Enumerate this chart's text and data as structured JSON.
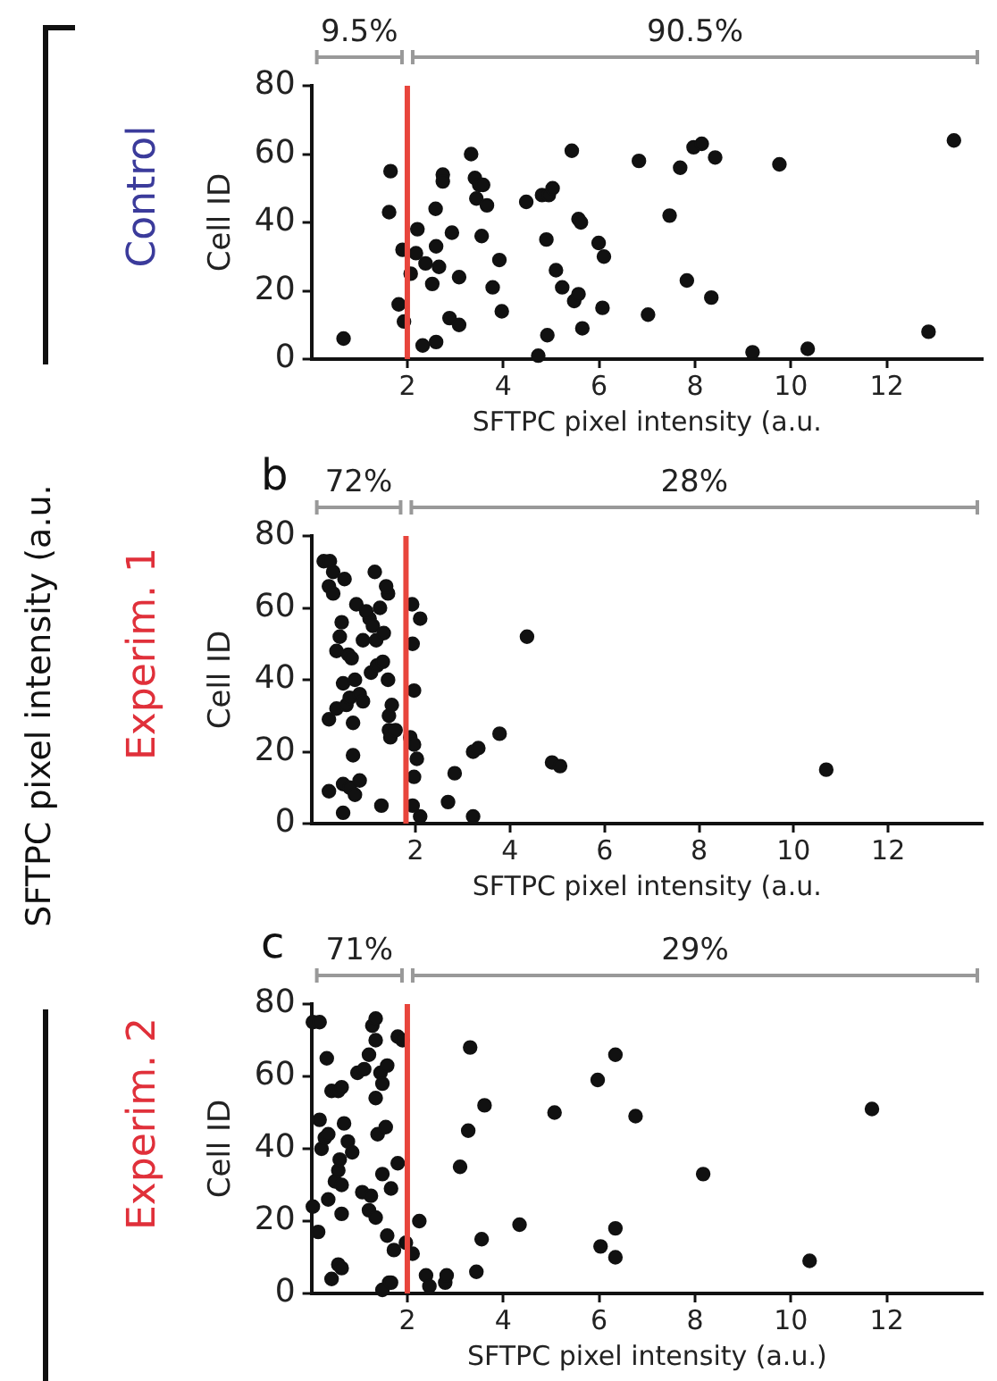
{
  "chart_data": [
    {
      "type": "scatter",
      "title": "Control",
      "xlabel": "SFTPC pixel intensity (a.u.",
      "ylabel": "Cell ID",
      "annotations": [
        "9.5%",
        "90.5%",
        "SFTPC pixel intensity (a.u."
      ],
      "color": "#111111",
      "marker": "circle",
      "grid": false,
      "legend": false,
      "xlim": [
        0,
        14
      ],
      "xticks": [
        2,
        4,
        6,
        8,
        10,
        12
      ],
      "ylim": [
        0,
        80
      ],
      "yticks": [
        0,
        20,
        40,
        60,
        80
      ],
      "ref_lines": [
        {
          "axis": "x",
          "value": 2,
          "color": "#e8453c"
        }
      ],
      "x": [
        0.67,
        1.65,
        1.62,
        1.82,
        1.93,
        1.9,
        2.07,
        2.18,
        2.21,
        2.38,
        2.32,
        2.52,
        2.6,
        2.6,
        2.59,
        2.66,
        2.74,
        2.74,
        2.93,
        2.88,
        3.08,
        3.08,
        3.33,
        3.41,
        3.5,
        3.58,
        3.44,
        3.66,
        3.55,
        3.78,
        3.92,
        3.97,
        4.48,
        4.73,
        4.81,
        4.9,
        4.92,
        4.95,
        5.03,
        5.1,
        5.23,
        5.43,
        5.48,
        5.57,
        5.57,
        5.62,
        5.65,
        5.99,
        6.1,
        6.07,
        6.83,
        7.02,
        7.47,
        7.69,
        7.83,
        7.97,
        8.14,
        8.34,
        8.42,
        9.2,
        9.76,
        10.35,
        12.87,
        13.4
      ],
      "values": [
        6,
        55,
        43,
        16,
        11,
        32,
        25,
        31,
        38,
        28,
        4,
        22,
        5,
        33,
        44,
        27,
        54,
        52,
        37,
        12,
        10,
        24,
        60,
        53,
        51,
        51,
        47,
        45,
        36,
        21,
        29,
        14,
        46,
        1,
        48,
        35,
        7,
        48,
        50,
        26,
        21,
        61,
        17,
        19,
        41,
        40,
        9,
        34,
        30,
        15,
        58,
        13,
        42,
        56,
        23,
        62,
        63,
        18,
        59,
        2,
        57,
        3,
        8,
        64
      ]
    },
    {
      "type": "scatter",
      "title": "Experim. 1",
      "xlabel": "SFTPC pixel intensity (a.u.",
      "ylabel": "Cell ID",
      "annotations": [
        "72%",
        "28%",
        "b"
      ],
      "color": "#111111",
      "marker": "circle",
      "grid": false,
      "legend": false,
      "xlim": [
        -0.2,
        14
      ],
      "xticks": [
        2,
        4,
        6,
        8,
        10,
        12
      ],
      "ylim": [
        0,
        80
      ],
      "yticks": [
        0,
        20,
        40,
        60,
        80
      ],
      "ref_lines": [
        {
          "axis": "x",
          "value": 1.8,
          "color": "#e8453c"
        }
      ],
      "x": [
        0.06,
        0.19,
        0.26,
        0.17,
        0.26,
        0.5,
        0.44,
        0.17,
        0.4,
        0.33,
        0.58,
        0.65,
        0.47,
        0.72,
        0.33,
        0.54,
        0.61,
        0.68,
        0.82,
        0.89,
        0.68,
        0.17,
        0.47,
        0.61,
        0.82,
        0.72,
        0.47,
        0.75,
        1.03,
        1.14,
        0.96,
        1.1,
        0.89,
        1.17,
        1.06,
        1.19,
        1.31,
        1.33,
        1.42,
        1.38,
        1.25,
        1.42,
        1.44,
        1.5,
        1.44,
        1.47,
        1.58,
        1.28,
        1.93,
        2.1,
        1.94,
        1.97,
        1.89,
        1.97,
        2.03,
        1.97,
        1.94,
        2.1,
        2.69,
        2.83,
        3.22,
        3.33,
        3.78,
        3.22,
        4.36,
        4.89,
        5.06,
        10.69
      ],
      "values": [
        73,
        73,
        70,
        66,
        64,
        68,
        56,
        29,
        52,
        48,
        47,
        46,
        39,
        40,
        32,
        33,
        35,
        28,
        36,
        34,
        19,
        9,
        11,
        10,
        12,
        8,
        3,
        61,
        57,
        70,
        59,
        55,
        51,
        51,
        42,
        44,
        45,
        53,
        64,
        66,
        60,
        40,
        30,
        33,
        26,
        24,
        26,
        5,
        61,
        57,
        50,
        37,
        24,
        22,
        18,
        13,
        5,
        2,
        6,
        14,
        20,
        21,
        25,
        2,
        52,
        17,
        16,
        15
      ]
    },
    {
      "type": "scatter",
      "title": "Experim. 2",
      "xlabel": "SFTPC pixel intensity (a.u.)",
      "ylabel": "Cell ID",
      "annotations": [
        "71%",
        "29%",
        "c"
      ],
      "color": "#111111",
      "marker": "circle",
      "grid": false,
      "legend": false,
      "xlim": [
        0,
        14
      ],
      "xticks": [
        2,
        4,
        6,
        8,
        10,
        12
      ],
      "ylim": [
        0,
        80
      ],
      "yticks": [
        0,
        20,
        40,
        60,
        80
      ],
      "ref_lines": [
        {
          "axis": "x",
          "value": 2,
          "color": "#e8453c"
        }
      ],
      "x": [
        0.03,
        0.17,
        0.03,
        0.14,
        0.32,
        0.42,
        0.56,
        0.63,
        0.17,
        0.21,
        0.28,
        0.35,
        0.68,
        0.76,
        0.35,
        0.49,
        0.63,
        0.56,
        0.59,
        0.85,
        0.63,
        0.56,
        0.63,
        0.42,
        0.96,
        1.1,
        1.2,
        1.27,
        1.34,
        1.34,
        1.44,
        1.48,
        1.58,
        1.34,
        1.38,
        1.55,
        1.06,
        1.24,
        1.2,
        1.34,
        1.48,
        1.58,
        1.66,
        1.72,
        1.62,
        1.48,
        1.66,
        1.8,
        1.9,
        1.8,
        1.97,
        2.11,
        2.25,
        2.39,
        2.46,
        2.79,
        2.82,
        3.31,
        3.27,
        3.1,
        3.61,
        3.55,
        3.44,
        4.34,
        5.07,
        5.97,
        6.34,
        6.76,
        6.03,
        6.34,
        6.34,
        8.17,
        10.39,
        11.69
      ],
      "values": [
        75,
        75,
        24,
        17,
        65,
        56,
        56,
        57,
        48,
        40,
        43,
        44,
        47,
        42,
        26,
        31,
        30,
        34,
        37,
        39,
        22,
        8,
        7,
        4,
        61,
        62,
        66,
        74,
        76,
        70,
        61,
        58,
        63,
        54,
        44,
        46,
        28,
        27,
        23,
        21,
        33,
        16,
        29,
        12,
        3,
        1,
        3,
        71,
        70,
        36,
        14,
        11,
        20,
        5,
        2,
        3,
        5,
        68,
        45,
        35,
        52,
        15,
        6,
        19,
        50,
        59,
        66,
        49,
        13,
        18,
        10,
        33,
        9,
        51
      ]
    }
  ]
}
